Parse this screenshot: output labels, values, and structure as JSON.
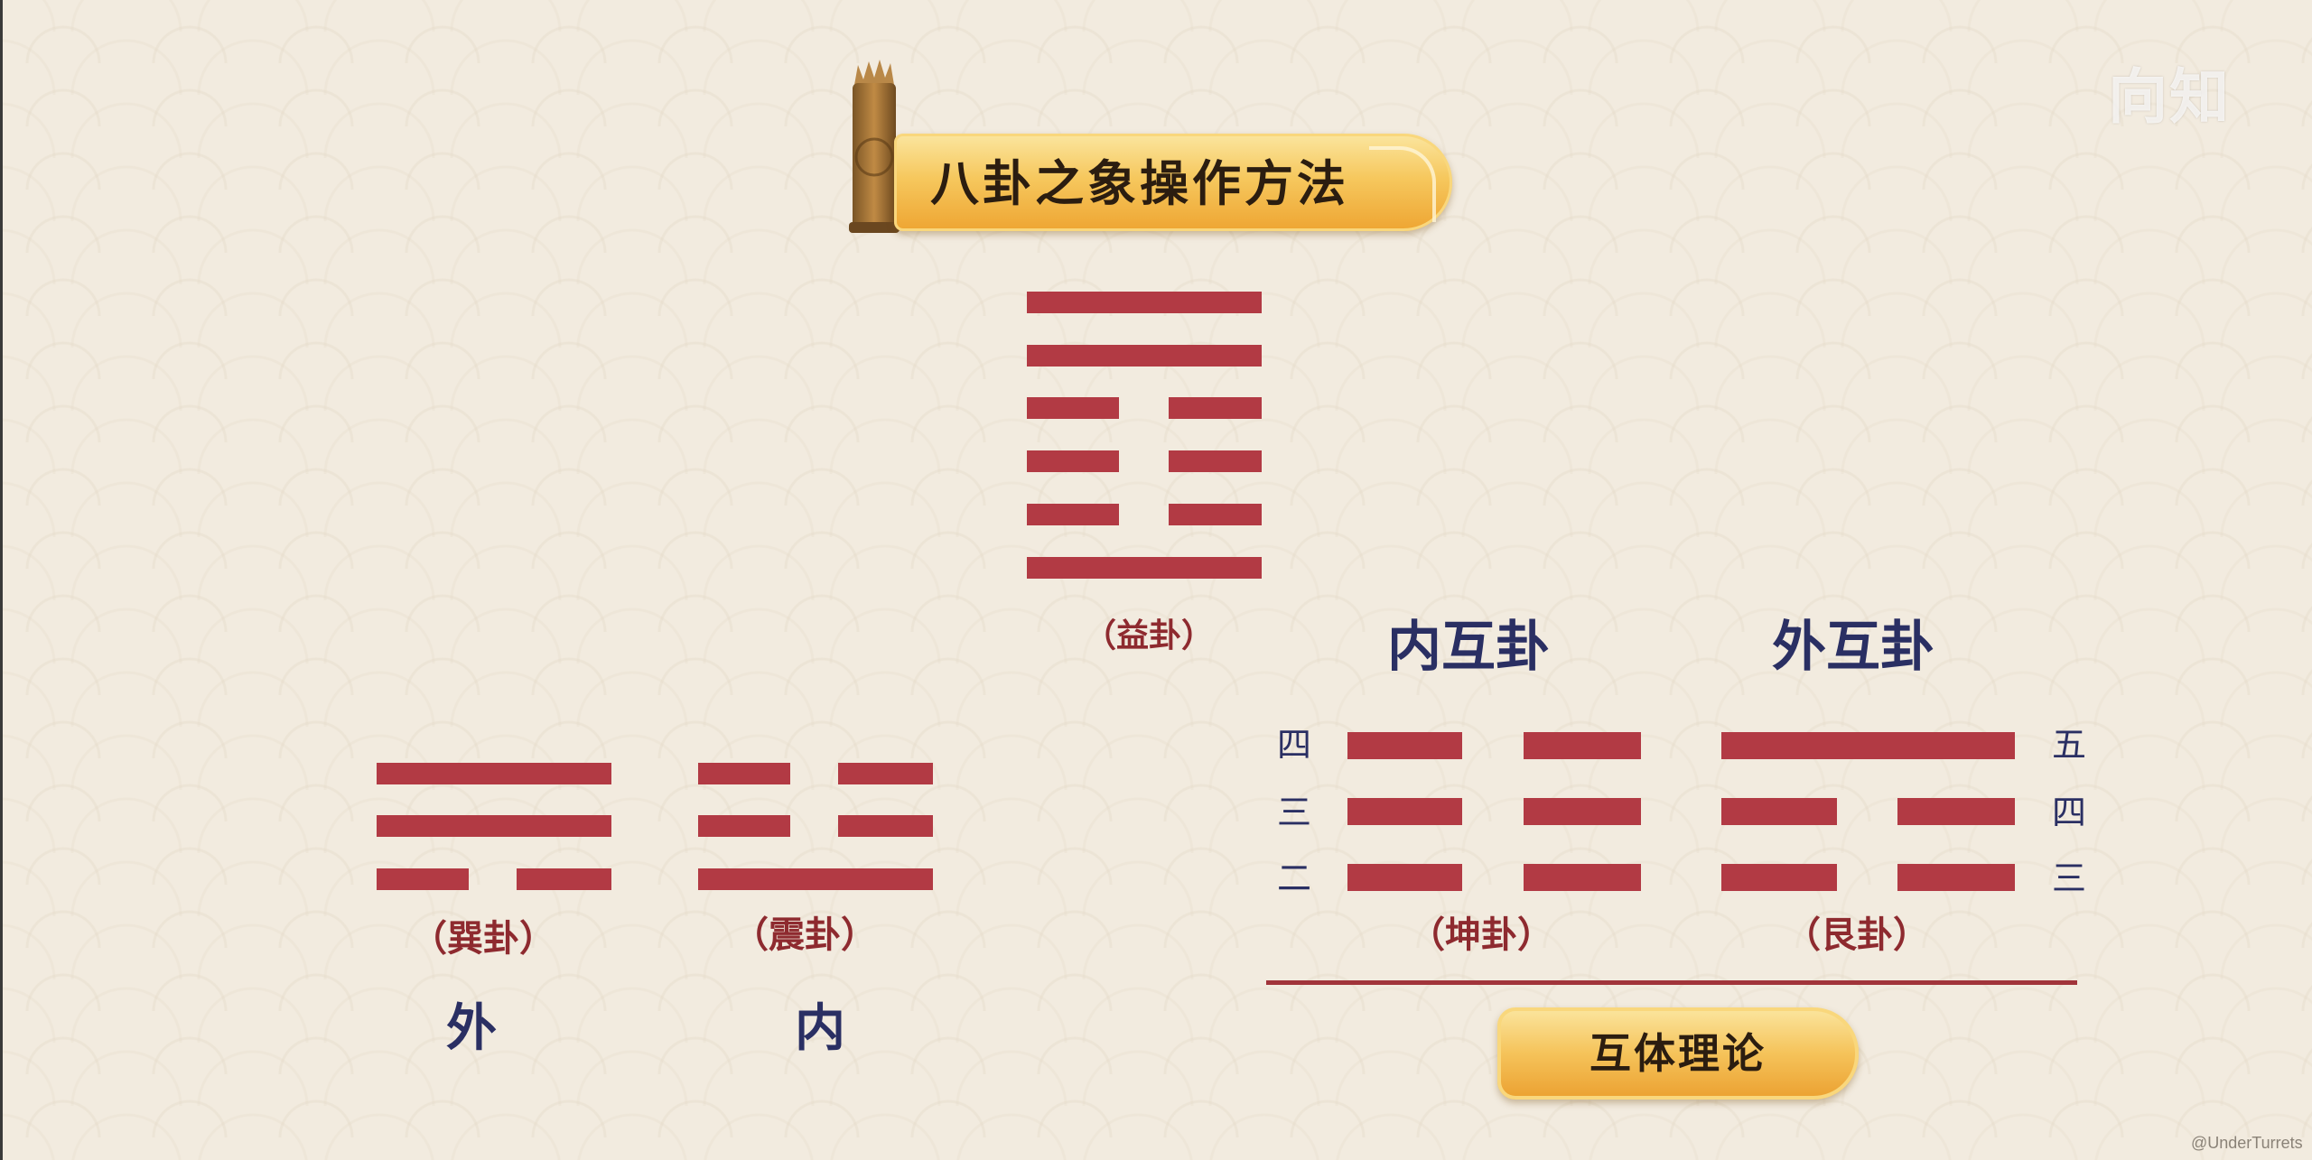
{
  "watermark": "向知",
  "title": "八卦之象操作方法",
  "top_hexagram": {
    "name": "（益卦）",
    "lines_top_to_bottom": [
      "yang",
      "yang",
      "yin",
      "yin",
      "yin",
      "yang"
    ]
  },
  "outer_trigram": {
    "name": "（巽卦）",
    "position_label": "外",
    "lines_top_to_bottom": [
      "yang",
      "yang",
      "yin"
    ]
  },
  "inner_trigram": {
    "name": "（震卦）",
    "position_label": "内",
    "lines_top_to_bottom": [
      "yin",
      "yin",
      "yang"
    ]
  },
  "inner_mutual": {
    "heading": "内互卦",
    "name": "（坤卦）",
    "line_numbers": [
      "四",
      "三",
      "二"
    ],
    "lines_top_to_bottom": [
      "yin",
      "yin",
      "yin"
    ]
  },
  "outer_mutual": {
    "heading": "外互卦",
    "name": "（艮卦）",
    "line_numbers": [
      "五",
      "四",
      "三"
    ],
    "lines_top_to_bottom": [
      "yang",
      "yin",
      "yin"
    ]
  },
  "theory_label": "互体理论",
  "credit": "@UnderTurrets",
  "colors": {
    "line": "#b23a44",
    "name_text": "#8e2a2f",
    "heading_text": "#2a2f63",
    "banner": "#f6c85e"
  }
}
